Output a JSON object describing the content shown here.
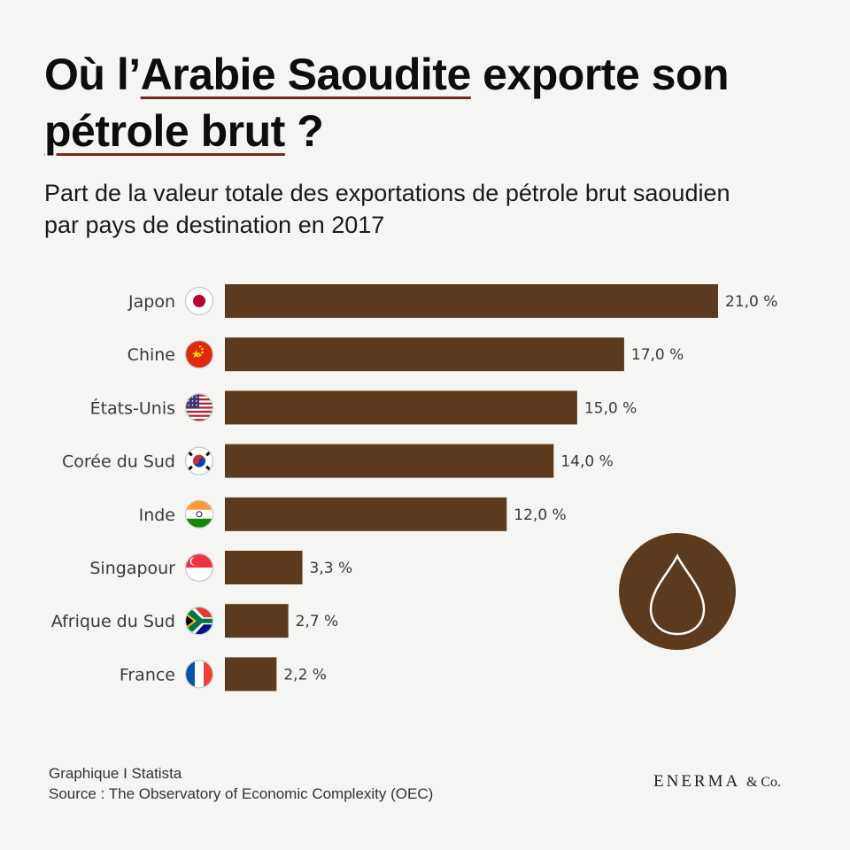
{
  "title": {
    "part1": "Où l’",
    "highlight1": "Arabie Saoudite",
    "part2": " exporte son ",
    "highlight2": "pétrole brut",
    "part3": " ?"
  },
  "subtitle": "Part de la valeur totale des exportations de pétrole brut saoudien par pays de destination en 2017",
  "chart_data": {
    "type": "bar",
    "orientation": "horizontal",
    "categories": [
      "Japon",
      "Chine",
      "États-Unis",
      "Corée du Sud",
      "Inde",
      "Singapour",
      "Afrique du Sud",
      "France"
    ],
    "values": [
      21.0,
      17.0,
      15.0,
      14.0,
      12.0,
      3.3,
      2.7,
      2.2
    ],
    "value_labels": [
      "21,0 %",
      "17,0 %",
      "15,0 %",
      "14,0 %",
      "12,0 %",
      "3,3 %",
      "2,7 %",
      "2,2 %"
    ],
    "flags": [
      "japan-flag-icon",
      "china-flag-icon",
      "usa-flag-icon",
      "south-korea-flag-icon",
      "india-flag-icon",
      "singapore-flag-icon",
      "south-africa-flag-icon",
      "france-flag-icon"
    ],
    "unit": "%",
    "xlim": [
      0,
      21
    ],
    "grid": false,
    "bar_color": "#5c3a1d"
  },
  "decoration": {
    "icon": "oil-drop-icon",
    "color": "#5c3a1d"
  },
  "footer": {
    "line1": "Graphique I Statista",
    "line2": "Source : The Observatory of Economic Complexity (OEC)"
  },
  "brand": {
    "name": "ENERMA",
    "suffix": "& Co."
  }
}
